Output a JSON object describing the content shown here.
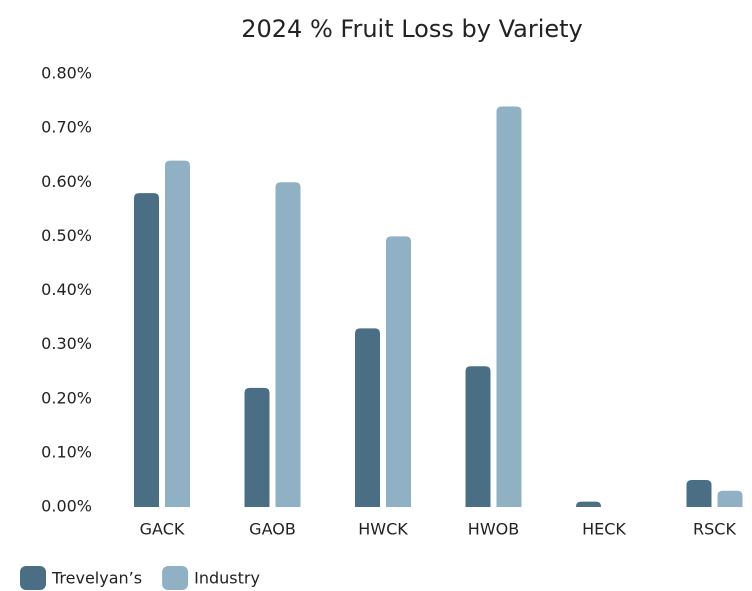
{
  "chart_data": {
    "type": "bar",
    "title": "2024 % Fruit Loss by Variety",
    "categories": [
      "GACK",
      "GAOB",
      "HWCK",
      "HWOB",
      "HECK",
      "RSCK"
    ],
    "series": [
      {
        "name": "Trevelyan’s",
        "color": "#4a6f85",
        "values": [
          0.58,
          0.22,
          0.33,
          0.26,
          0.01,
          0.05
        ]
      },
      {
        "name": "Industry",
        "color": "#8fb1c3",
        "values": [
          0.64,
          0.6,
          0.5,
          0.74,
          null,
          0.03
        ]
      }
    ],
    "ylim": [
      0,
      0.8
    ],
    "yticks": [
      {
        "value": 0,
        "label": "0.00%"
      },
      {
        "value": 0.1,
        "label": "0.10%"
      },
      {
        "value": 0.2,
        "label": "0.20%"
      },
      {
        "value": 0.3,
        "label": "0.30%"
      },
      {
        "value": 0.4,
        "label": "0.40%"
      },
      {
        "value": 0.5,
        "label": "0.50%"
      },
      {
        "value": 0.6,
        "label": "0.60%"
      },
      {
        "value": 0.7,
        "label": "0.70%"
      },
      {
        "value": 0.8,
        "label": "0.80%"
      }
    ],
    "grid": false,
    "legend": "bottom-left"
  }
}
